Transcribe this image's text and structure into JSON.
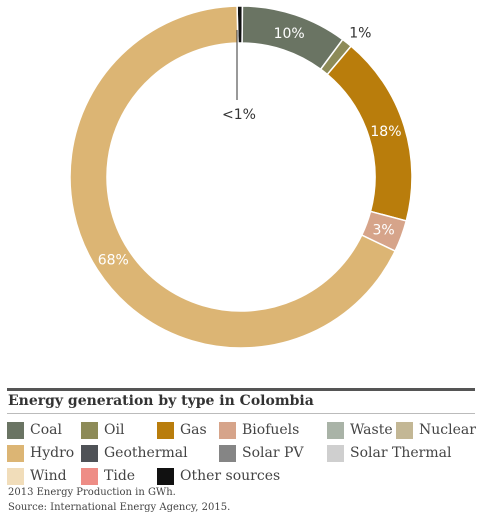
{
  "chart_data": {
    "type": "pie",
    "variant": "donut",
    "title": "Energy generation by type in Colombia",
    "slices": [
      {
        "name": "Other sources",
        "value": 0.5,
        "label": "",
        "color": "#111111"
      },
      {
        "name": "Coal",
        "value": 10,
        "label": "10%",
        "color": "#6a7463"
      },
      {
        "name": "Oil",
        "value": 1,
        "label": "1%",
        "color": "#8d8b58"
      },
      {
        "name": "Gas",
        "value": 18,
        "label": "18%",
        "color": "#b97d0c"
      },
      {
        "name": "Biofuels",
        "value": 3,
        "label": "3%",
        "color": "#d6a48a"
      },
      {
        "name": "Hydro",
        "value": 67.5,
        "label": "68%",
        "color": "#dcb574"
      }
    ],
    "annotation": "<1%",
    "legend": [
      {
        "name": "Coal",
        "color": "#6a7463"
      },
      {
        "name": "Oil",
        "color": "#8d8b58"
      },
      {
        "name": "Gas",
        "color": "#b97d0c"
      },
      {
        "name": "Biofuels",
        "color": "#d6a48a"
      },
      {
        "name": "Waste",
        "color": "#a9b3a7"
      },
      {
        "name": "Nuclear",
        "color": "#c3b795"
      },
      {
        "name": "Hydro",
        "color": "#dcb574"
      },
      {
        "name": "Geothermal",
        "color": "#4f5257"
      },
      {
        "name": "Solar PV",
        "color": "#858585"
      },
      {
        "name": "Solar Thermal",
        "color": "#cfcfcf"
      },
      {
        "name": "Wind",
        "color": "#f1ddba"
      },
      {
        "name": "Tide",
        "color": "#ee8d86"
      },
      {
        "name": "Other sources",
        "color": "#111111"
      }
    ],
    "legend_placement": "bottom"
  },
  "notes": {
    "line1": "2013 Energy Production in GWh.",
    "line2": "Source: International Energy Agency, 2015."
  }
}
